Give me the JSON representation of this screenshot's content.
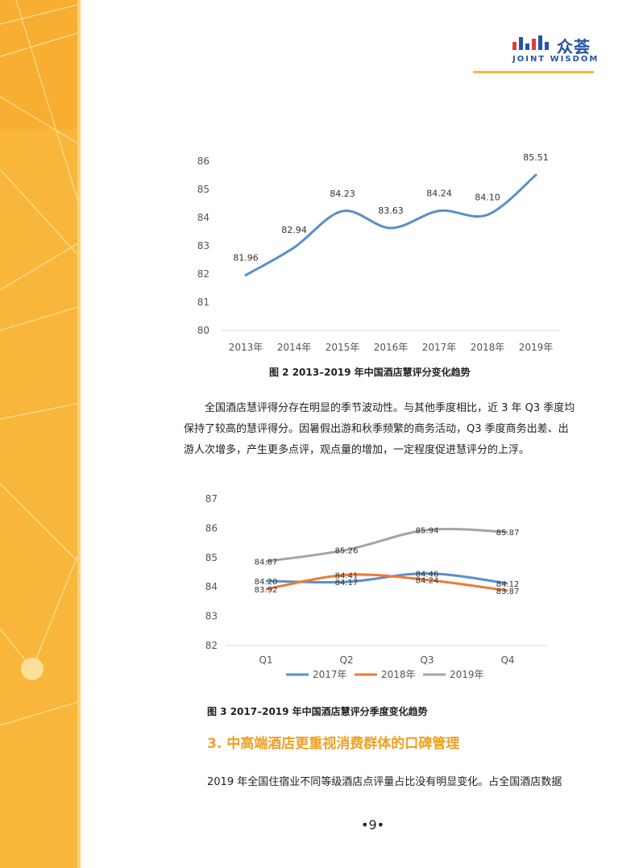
{
  "header": {
    "logo_cn": "众荟",
    "logo_en": "JOINT WISDOM"
  },
  "colors": {
    "brand_yellow": "#f8b73a",
    "brand_blue": "#2455a4",
    "series_2017": "#5b8fc7",
    "series_2018": "#ec7a35",
    "series_2019": "#a5a5a5",
    "heading": "#f0a020"
  },
  "chart_data": [
    {
      "type": "line",
      "title": "图 2   2013–2019 年中国酒店慧评分变化趋势",
      "categories": [
        "2013年",
        "2014年",
        "2015年",
        "2016年",
        "2017年",
        "2018年",
        "2019年"
      ],
      "values": [
        81.96,
        82.94,
        84.23,
        83.63,
        84.24,
        84.1,
        85.51
      ],
      "data_labels": [
        "81.96",
        "82.94",
        "84.23",
        "83.63",
        "84.24",
        "84.10",
        "85.51"
      ],
      "y_ticks": [
        "80",
        "81",
        "82",
        "83",
        "84",
        "85",
        "86"
      ],
      "ylim": [
        80,
        86
      ],
      "xlabel": "",
      "ylabel": "",
      "grid": false
    },
    {
      "type": "line",
      "title": "图 3   2017–2019 年中国酒店慧评分季度变化趋势",
      "categories": [
        "Q1",
        "Q2",
        "Q3",
        "Q4"
      ],
      "series": [
        {
          "name": "2017年",
          "values": [
            84.2,
            84.17,
            84.46,
            84.12
          ],
          "labels": [
            "84.20",
            "84.17",
            "84.46",
            "84.12"
          ]
        },
        {
          "name": "2018年",
          "values": [
            83.92,
            84.41,
            84.24,
            83.87
          ],
          "labels": [
            "83.92",
            "84.41",
            "84.24",
            "83.87"
          ]
        },
        {
          "name": "2019年",
          "values": [
            84.87,
            85.26,
            85.94,
            85.87
          ],
          "labels": [
            "84.87",
            "85.26",
            "85.94",
            "85.87"
          ]
        }
      ],
      "y_ticks": [
        "82",
        "83",
        "84",
        "85",
        "86",
        "87"
      ],
      "ylim": [
        82,
        87
      ],
      "legend": "bottom",
      "grid": false
    }
  ],
  "captions": {
    "fig2": "图 2   2013–2019 年中国酒店慧评分变化趋势",
    "fig3": "图 3   2017–2019 年中国酒店慧评分季度变化趋势"
  },
  "body": {
    "para1": "全国酒店慧评得分存在明显的季节波动性。与其他季度相比，近 3 年 Q3 季度均保持了较高的慧评得分。因暑假出游和秋季频繁的商务活动，Q3 季度商务出差、出游人次增多，产生更多点评，观点量的增加，一定程度促进慧评分的上浮。",
    "heading": "3. 中高端酒店更重视消费群体的口碑管理",
    "para2": "2019 年全国住宿业不同等级酒店点评量占比没有明显变化。占全国酒店数据"
  },
  "footer": {
    "page_number": "•9•"
  }
}
